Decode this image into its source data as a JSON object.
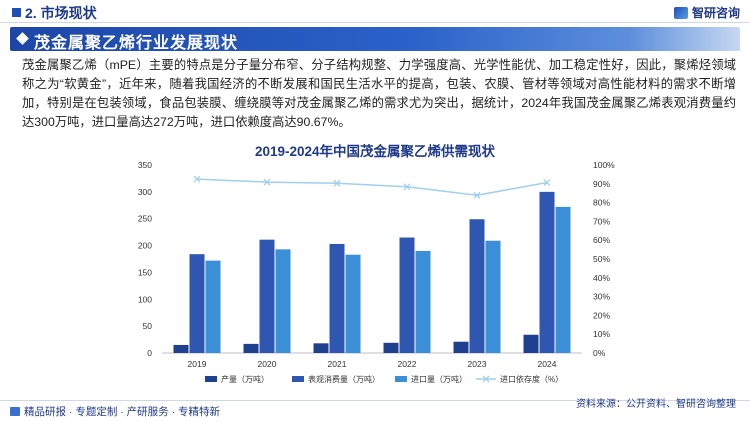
{
  "header": {
    "section": "2. 市场现状",
    "brand": "智研咨询"
  },
  "banner": {
    "title": "茂金属聚乙烯行业发展现状"
  },
  "body_text": "茂金属聚乙烯（mPE）主要的特点是分子量分布窄、分子结构规整、力学强度高、光学性能优、加工稳定性好，因此，聚烯烃领域称之为“软黄金”，近年来，随着我国经济的不断发展和国民生活水平的提高，包装、农膜、管材等领域对高性能材料的需求不断增加，特别是在包装领域，食品包装膜、缠绕膜等对茂金属聚乙烯的需求尤为突出，据统计，2024年我国茂金属聚乙烯表观消费量约达300万吨，进口量高达272万吨，进口依赖度高达90.67%。",
  "chart_data": {
    "type": "bar",
    "title": "2019-2024年中国茂金属聚乙烯供需现状",
    "categories": [
      "2019",
      "2020",
      "2021",
      "2022",
      "2023",
      "2024"
    ],
    "series": [
      {
        "name": "产量（万吨）",
        "color": "#1f3f8f",
        "values": [
          15,
          17,
          18,
          19,
          21,
          34
        ]
      },
      {
        "name": "表观消费量（万吨）",
        "color": "#2f56b0",
        "values": [
          184,
          211,
          203,
          215,
          249,
          300
        ]
      },
      {
        "name": "进口量（万吨）",
        "color": "#3a8fd6",
        "values": [
          172,
          193,
          183,
          190,
          209,
          272
        ]
      }
    ],
    "line_series": {
      "name": "进口依存度（%）",
      "color": "#9fd0ec",
      "values": [
        92.5,
        90.9,
        90.3,
        88.4,
        83.9,
        90.67
      ]
    },
    "ylim": [
      0,
      350
    ],
    "yticks": [
      0,
      50,
      100,
      150,
      200,
      250,
      300,
      350
    ],
    "y2lim": [
      0,
      100
    ],
    "y2ticks": [
      "0%",
      "10%",
      "20%",
      "30%",
      "40%",
      "50%",
      "60%",
      "70%",
      "80%",
      "90%",
      "100%"
    ],
    "legend_position": "bottom"
  },
  "footer": {
    "left": "精品研报 · 专题定制 · 产研服务 · 专精特新",
    "source": "资料来源：公开资料、智研咨询整理"
  }
}
